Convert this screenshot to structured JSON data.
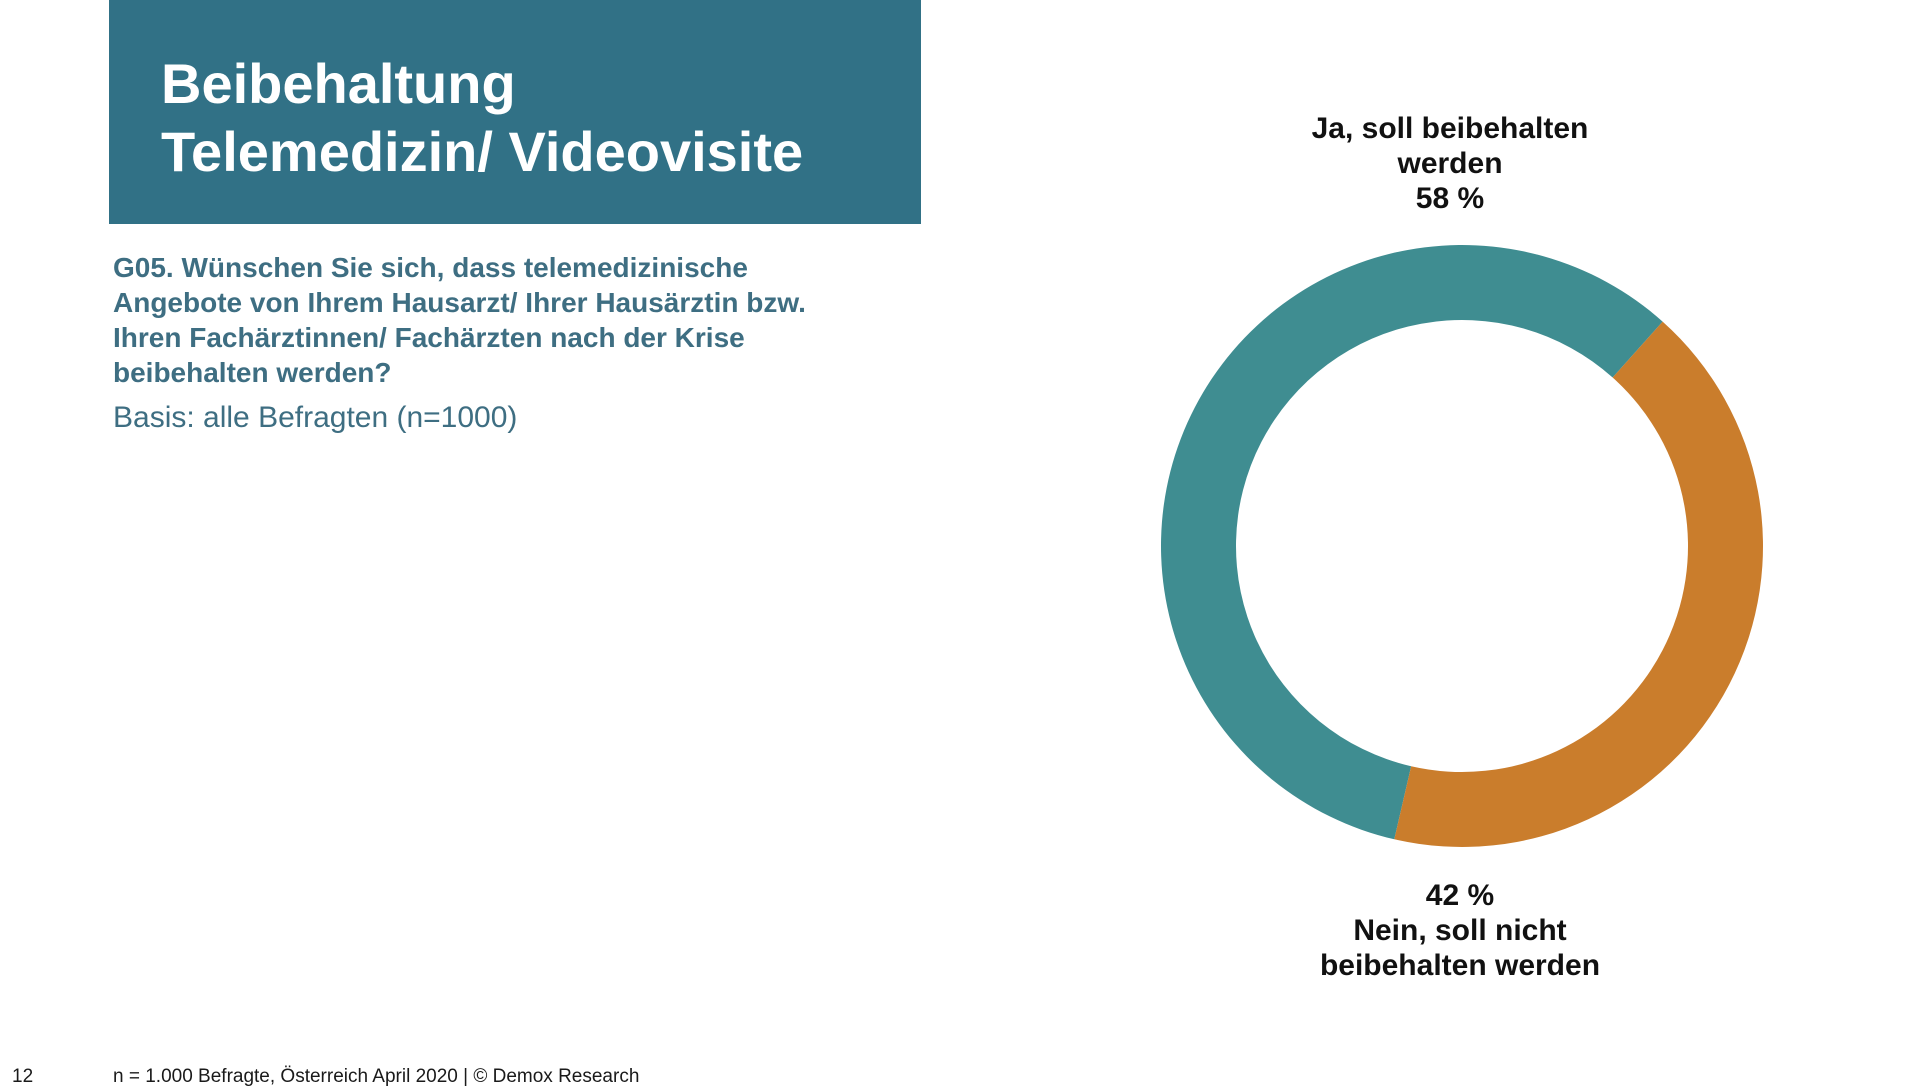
{
  "header": {
    "title_lines": [
      "Beibehaltung",
      "Telemedizin/ Videovisite"
    ]
  },
  "question": {
    "lines": [
      "G05. Wünschen Sie sich, dass telemedizinische",
      "Angebote von Ihrem Hausarzt/ Ihrer Hausärztin bzw.",
      "Ihren Fachärztinnen/ Fachärzten nach der Krise",
      "beibehalten werden?"
    ],
    "basis": "Basis: alle Befragten (n=1000)"
  },
  "chart_data": {
    "type": "pie",
    "subtype": "donut",
    "title": "",
    "unit": "%",
    "slices": [
      {
        "label_lines": [
          "Ja, soll beibehalten",
          "werden"
        ],
        "value": 58,
        "value_label": "58 %",
        "color": "#3f8d91",
        "label_position": "top"
      },
      {
        "label_lines": [
          "Nein, soll nicht",
          "beibehalten werden"
        ],
        "value": 42,
        "value_label": "42 %",
        "color": "#ca7d2c",
        "label_position": "bottom"
      }
    ]
  },
  "footer": {
    "page_number": "12",
    "source": "n = 1.000 Befragte, Österreich April 2020 | © Demox Research"
  }
}
